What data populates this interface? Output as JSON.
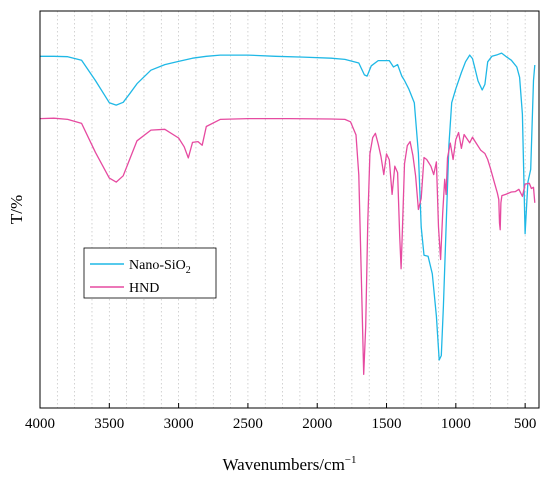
{
  "chart_data": {
    "type": "line",
    "xlabel": "Wavenumbers/cm",
    "xlabel_sup": "−1",
    "ylabel": "T/%",
    "xlim": [
      4000,
      400
    ],
    "x_reversed": true,
    "xticks": [
      4000,
      3500,
      3000,
      2500,
      2000,
      1500,
      1000,
      500
    ],
    "ylim": [
      0,
      100
    ],
    "grid": "vertical-dotted",
    "legend_position": "middle-left",
    "series": [
      {
        "name": "Nano-SiO",
        "name_sub": "2",
        "color": "#1fb8e6",
        "points": [
          [
            4000,
            88.6
          ],
          [
            3900,
            88.6
          ],
          [
            3800,
            88.5
          ],
          [
            3700,
            87.6
          ],
          [
            3600,
            82.5
          ],
          [
            3500,
            76.9
          ],
          [
            3450,
            76.3
          ],
          [
            3400,
            77.0
          ],
          [
            3350,
            79.3
          ],
          [
            3300,
            81.7
          ],
          [
            3200,
            85.1
          ],
          [
            3100,
            86.5
          ],
          [
            3000,
            87.3
          ],
          [
            2900,
            88.1
          ],
          [
            2800,
            88.6
          ],
          [
            2700,
            88.9
          ],
          [
            2500,
            88.9
          ],
          [
            2300,
            88.6
          ],
          [
            2100,
            88.4
          ],
          [
            1900,
            88.1
          ],
          [
            1800,
            87.8
          ],
          [
            1700,
            86.9
          ],
          [
            1660,
            83.9
          ],
          [
            1640,
            83.6
          ],
          [
            1610,
            86.2
          ],
          [
            1560,
            87.5
          ],
          [
            1480,
            87.5
          ],
          [
            1450,
            85.9
          ],
          [
            1420,
            86.5
          ],
          [
            1390,
            83.6
          ],
          [
            1370,
            82.5
          ],
          [
            1340,
            80.4
          ],
          [
            1300,
            76.9
          ],
          [
            1270,
            64.1
          ],
          [
            1250,
            45.6
          ],
          [
            1230,
            38.5
          ],
          [
            1200,
            38.2
          ],
          [
            1170,
            33.8
          ],
          [
            1140,
            23.1
          ],
          [
            1120,
            12.1
          ],
          [
            1105,
            13.2
          ],
          [
            1090,
            25.6
          ],
          [
            1070,
            45.6
          ],
          [
            1050,
            66.2
          ],
          [
            1030,
            76.9
          ],
          [
            1000,
            80.4
          ],
          [
            960,
            84.5
          ],
          [
            930,
            87.2
          ],
          [
            900,
            88.9
          ],
          [
            880,
            88.0
          ],
          [
            860,
            85.3
          ],
          [
            840,
            82.4
          ],
          [
            810,
            80.1
          ],
          [
            790,
            81.5
          ],
          [
            770,
            87.2
          ],
          [
            740,
            88.6
          ],
          [
            700,
            89.0
          ],
          [
            670,
            89.4
          ],
          [
            640,
            88.6
          ],
          [
            600,
            87.6
          ],
          [
            560,
            85.9
          ],
          [
            540,
            83.3
          ],
          [
            520,
            74.0
          ],
          [
            500,
            43.9
          ],
          [
            480,
            56.9
          ],
          [
            460,
            60.1
          ],
          [
            440,
            82.5
          ],
          [
            430,
            86.4
          ]
        ]
      },
      {
        "name": "HND",
        "color": "#e64aa0",
        "points": [
          [
            4000,
            72.9
          ],
          [
            3900,
            73.0
          ],
          [
            3800,
            72.7
          ],
          [
            3700,
            71.7
          ],
          [
            3600,
            64.4
          ],
          [
            3500,
            57.9
          ],
          [
            3450,
            56.9
          ],
          [
            3400,
            58.5
          ],
          [
            3350,
            62.9
          ],
          [
            3300,
            67.3
          ],
          [
            3200,
            70.0
          ],
          [
            3100,
            70.2
          ],
          [
            3000,
            68.0
          ],
          [
            2960,
            65.8
          ],
          [
            2930,
            63.0
          ],
          [
            2900,
            66.9
          ],
          [
            2860,
            67.1
          ],
          [
            2830,
            66.2
          ],
          [
            2800,
            70.9
          ],
          [
            2700,
            72.7
          ],
          [
            2500,
            72.9
          ],
          [
            2200,
            72.9
          ],
          [
            1900,
            72.8
          ],
          [
            1800,
            72.7
          ],
          [
            1760,
            72.1
          ],
          [
            1720,
            68.8
          ],
          [
            1700,
            58.7
          ],
          [
            1680,
            30.2
          ],
          [
            1665,
            8.5
          ],
          [
            1650,
            20.5
          ],
          [
            1635,
            47.0
          ],
          [
            1620,
            64.0
          ],
          [
            1600,
            68.1
          ],
          [
            1580,
            69.2
          ],
          [
            1560,
            66.5
          ],
          [
            1540,
            63.3
          ],
          [
            1520,
            58.8
          ],
          [
            1500,
            64.0
          ],
          [
            1480,
            62.5
          ],
          [
            1460,
            53.8
          ],
          [
            1440,
            60.9
          ],
          [
            1420,
            59.3
          ],
          [
            1405,
            43.3
          ],
          [
            1395,
            35.1
          ],
          [
            1385,
            45.6
          ],
          [
            1370,
            61.5
          ],
          [
            1350,
            66.1
          ],
          [
            1330,
            67.1
          ],
          [
            1310,
            63.6
          ],
          [
            1290,
            58.5
          ],
          [
            1270,
            50.0
          ],
          [
            1250,
            52.8
          ],
          [
            1230,
            63.1
          ],
          [
            1210,
            62.6
          ],
          [
            1180,
            60.9
          ],
          [
            1160,
            58.8
          ],
          [
            1140,
            62.0
          ],
          [
            1125,
            45.6
          ],
          [
            1110,
            37.4
          ],
          [
            1095,
            49.1
          ],
          [
            1080,
            57.6
          ],
          [
            1070,
            53.8
          ],
          [
            1060,
            63.0
          ],
          [
            1040,
            66.7
          ],
          [
            1020,
            62.6
          ],
          [
            1000,
            67.6
          ],
          [
            980,
            69.4
          ],
          [
            960,
            65.4
          ],
          [
            940,
            68.9
          ],
          [
            900,
            66.8
          ],
          [
            880,
            68.2
          ],
          [
            860,
            67.1
          ],
          [
            820,
            64.9
          ],
          [
            790,
            64.1
          ],
          [
            770,
            62.6
          ],
          [
            750,
            60.3
          ],
          [
            720,
            56.6
          ],
          [
            700,
            54.1
          ],
          [
            690,
            52.5
          ],
          [
            685,
            46.6
          ],
          [
            680,
            44.9
          ],
          [
            675,
            51.7
          ],
          [
            668,
            53.5
          ],
          [
            640,
            53.8
          ],
          [
            600,
            54.4
          ],
          [
            570,
            54.5
          ],
          [
            545,
            55.1
          ],
          [
            520,
            53.3
          ],
          [
            500,
            56.4
          ],
          [
            470,
            56.6
          ],
          [
            455,
            55.3
          ],
          [
            440,
            55.6
          ],
          [
            430,
            51.7
          ]
        ]
      }
    ]
  }
}
